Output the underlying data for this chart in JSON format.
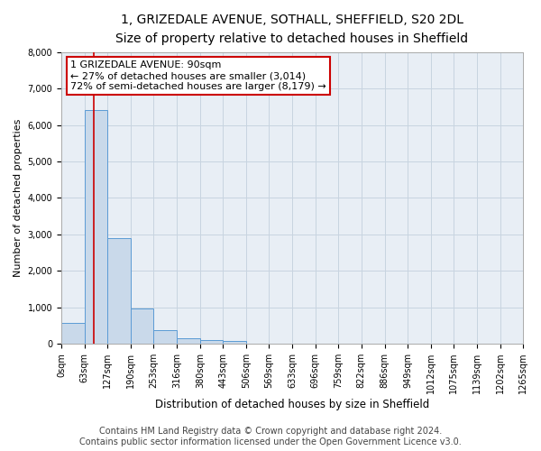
{
  "title_line1": "1, GRIZEDALE AVENUE, SOTHALL, SHEFFIELD, S20 2DL",
  "title_line2": "Size of property relative to detached houses in Sheffield",
  "xlabel": "Distribution of detached houses by size in Sheffield",
  "ylabel": "Number of detached properties",
  "bin_edges": [
    0,
    63,
    127,
    190,
    253,
    316,
    380,
    443,
    506,
    569,
    633,
    696,
    759,
    822,
    886,
    949,
    1012,
    1075,
    1139,
    1202,
    1265
  ],
  "bar_heights": [
    570,
    6400,
    2900,
    960,
    370,
    165,
    100,
    70,
    0,
    0,
    0,
    0,
    0,
    0,
    0,
    0,
    0,
    0,
    0,
    0
  ],
  "bar_color": "#c9d9ea",
  "bar_edge_color": "#5b9bd5",
  "grid_color": "#c8d4e0",
  "bg_color": "#e8eef5",
  "property_size": 90,
  "vline_color": "#cc0000",
  "annotation_line1": "1 GRIZEDALE AVENUE: 90sqm",
  "annotation_line2": "← 27% of detached houses are smaller (3,014)",
  "annotation_line3": "72% of semi-detached houses are larger (8,179) →",
  "annotation_box_color": "#cc0000",
  "annotation_bg": "#ffffff",
  "ylim": [
    0,
    8000
  ],
  "yticks": [
    0,
    1000,
    2000,
    3000,
    4000,
    5000,
    6000,
    7000,
    8000
  ],
  "footer_line1": "Contains HM Land Registry data © Crown copyright and database right 2024.",
  "footer_line2": "Contains public sector information licensed under the Open Government Licence v3.0.",
  "title_fontsize": 10,
  "subtitle_fontsize": 9,
  "tick_label_fontsize": 7,
  "ylabel_fontsize": 8,
  "xlabel_fontsize": 8.5,
  "footer_fontsize": 7,
  "annot_fontsize": 8
}
